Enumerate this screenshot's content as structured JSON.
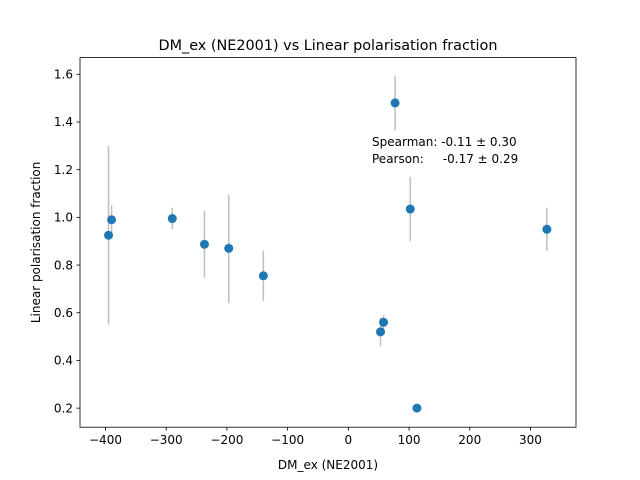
{
  "chart_data": {
    "type": "scatter",
    "title": "DM_ex (NE2001) vs Linear polarisation fraction",
    "xlabel": "DM_ex (NE2001)",
    "ylabel": "Linear polarisation fraction",
    "xlim": [
      -442,
      375
    ],
    "ylim": [
      0.12,
      1.67
    ],
    "xticks": [
      -400,
      -300,
      -200,
      -100,
      0,
      100,
      200,
      300
    ],
    "xtick_labels": [
      "−400",
      "−300",
      "−200",
      "−100",
      "0",
      "100",
      "200",
      "300"
    ],
    "yticks": [
      0.2,
      0.4,
      0.6,
      0.8,
      1.0,
      1.2,
      1.4,
      1.6
    ],
    "ytick_labels": [
      "0.2",
      "0.4",
      "0.6",
      "0.8",
      "1.0",
      "1.2",
      "1.4",
      "1.6"
    ],
    "grid": false,
    "marker_color": "#1f77b4",
    "errorbar_color": "#bfbfbf",
    "annotations": [
      "Spearman: -0.11 ± 0.30",
      "Pearson:     -0.17 ± 0.29"
    ],
    "points": [
      {
        "x": -395,
        "y": 0.925,
        "yerr_low": 0.375,
        "yerr_high": 0.375,
        "xerr": 6
      },
      {
        "x": -390,
        "y": 0.99,
        "yerr_low": 0.06,
        "yerr_high": 0.06,
        "xerr": 6
      },
      {
        "x": -290,
        "y": 0.995,
        "yerr_low": 0.045,
        "yerr_high": 0.045,
        "xerr": 6
      },
      {
        "x": -237,
        "y": 0.887,
        "yerr_low": 0.14,
        "yerr_high": 0.14,
        "xerr": 6
      },
      {
        "x": -197,
        "y": 0.87,
        "yerr_low": 0.23,
        "yerr_high": 0.225,
        "xerr": 6
      },
      {
        "x": -140,
        "y": 0.755,
        "yerr_low": 0.105,
        "yerr_high": 0.105,
        "xerr": 6
      },
      {
        "x": 53,
        "y": 0.52,
        "yerr_low": 0.06,
        "yerr_high": 0.06,
        "xerr": 6
      },
      {
        "x": 58,
        "y": 0.56,
        "yerr_low": 0.03,
        "yerr_high": 0.03,
        "xerr": 3
      },
      {
        "x": 77,
        "y": 1.48,
        "yerr_low": 0.115,
        "yerr_high": 0.115,
        "xerr": 6
      },
      {
        "x": 102,
        "y": 1.035,
        "yerr_low": 0.135,
        "yerr_high": 0.135,
        "xerr": 6
      },
      {
        "x": 113,
        "y": 0.2,
        "yerr_low": 0.015,
        "yerr_high": 0.015,
        "xerr": 3
      },
      {
        "x": 327,
        "y": 0.95,
        "yerr_low": 0.09,
        "yerr_high": 0.09,
        "xerr": 6
      }
    ]
  }
}
